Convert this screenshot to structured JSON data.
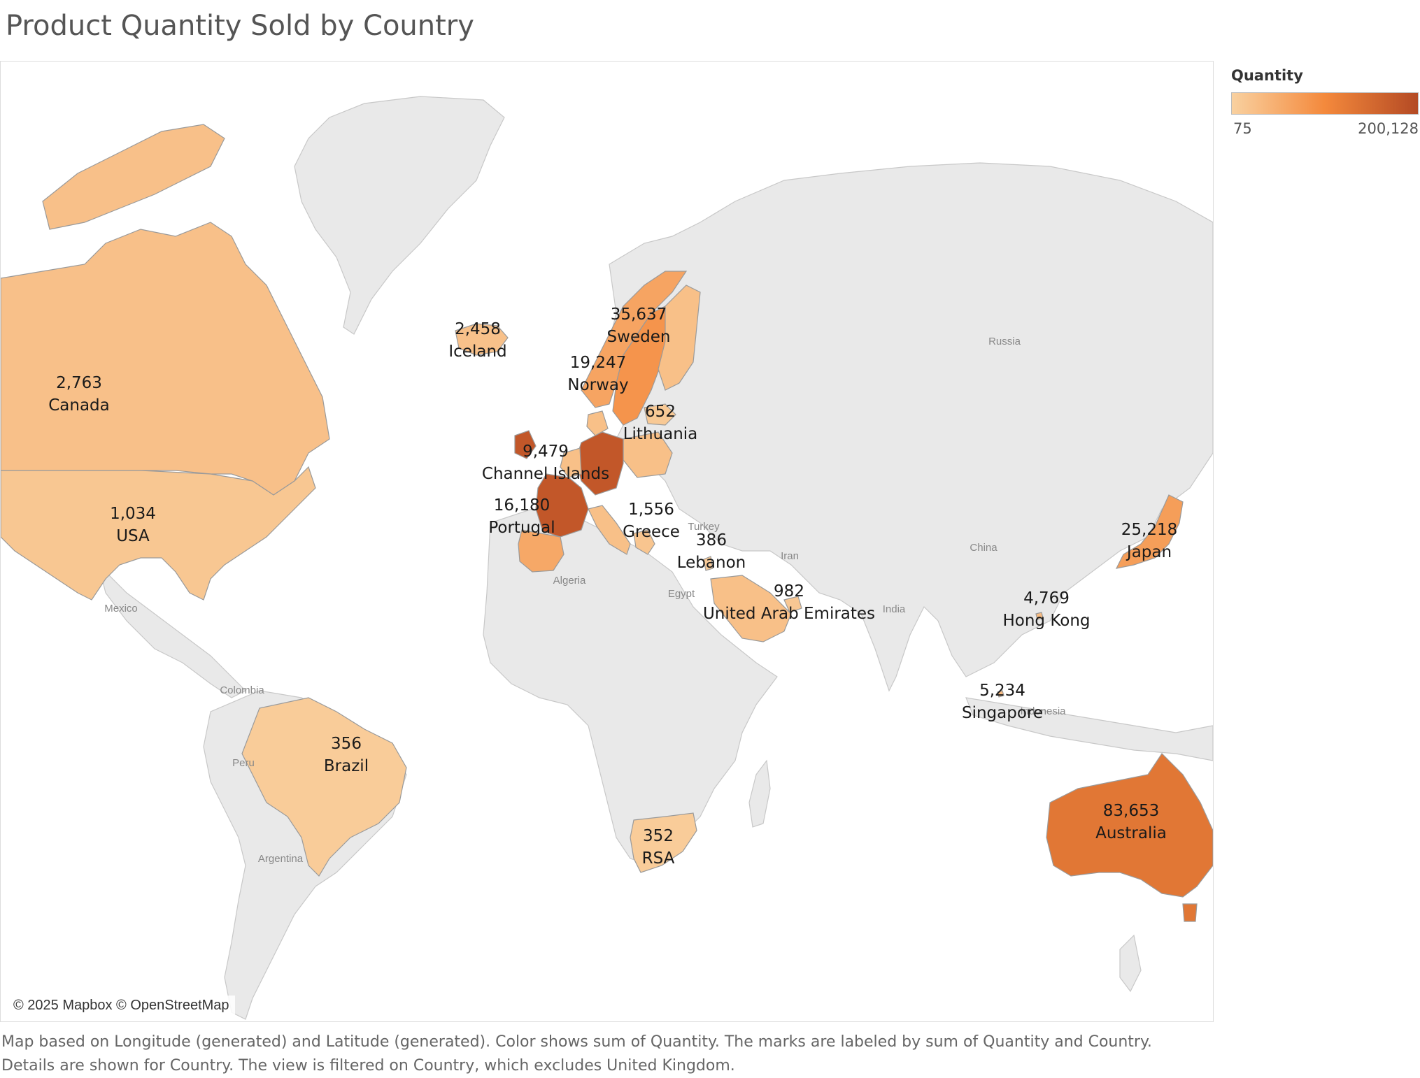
{
  "title": "Product Quantity Sold by Country",
  "attribution": "© 2025 Mapbox © OpenStreetMap",
  "legend": {
    "title": "Quantity",
    "min_label": "75",
    "max_label": "200,128",
    "min_value": 75,
    "max_value": 200128,
    "color_low": "#f9d1a0",
    "color_mid": "#f4893c",
    "color_high": "#b44a24"
  },
  "caption": {
    "line1": "Map based on Longitude (generated) and Latitude (generated).  Color shows sum of Quantity.  The marks are labeled by sum of Quantity and Country.",
    "line2": "Details are shown for Country. The view is filtered on Country, which excludes United Kingdom."
  },
  "colors": {
    "land": "#e9e9e9",
    "border": "#c8c8c8",
    "water": "#ffffff",
    "country_border": "#9a9a9a"
  },
  "basemap_labels": [
    "Russia",
    "China",
    "India",
    "Iran",
    "Turkey",
    "Egypt",
    "Algeria",
    "Mexico",
    "Colombia",
    "Peru",
    "Argentina",
    "Indonesia"
  ],
  "chart_data": {
    "type": "map",
    "measure": "Quantity",
    "countries": [
      {
        "name": "Canada",
        "value": 2763,
        "label": "2,763"
      },
      {
        "name": "USA",
        "value": 1034,
        "label": "1,034"
      },
      {
        "name": "Iceland",
        "value": 2458,
        "label": "2,458"
      },
      {
        "name": "Sweden",
        "value": 35637,
        "label": "35,637"
      },
      {
        "name": "Norway",
        "value": 19247,
        "label": "19,247"
      },
      {
        "name": "Lithuania",
        "value": 652,
        "label": "652"
      },
      {
        "name": "Channel Islands",
        "value": 9479,
        "label": "9,479"
      },
      {
        "name": "Portugal",
        "value": 16180,
        "label": "16,180"
      },
      {
        "name": "Greece",
        "value": 1556,
        "label": "1,556"
      },
      {
        "name": "Lebanon",
        "value": 386,
        "label": "386"
      },
      {
        "name": "United Arab Emirates",
        "value": 982,
        "label": "982"
      },
      {
        "name": "Japan",
        "value": 25218,
        "label": "25,218"
      },
      {
        "name": "Hong Kong",
        "value": 4769,
        "label": "4,769"
      },
      {
        "name": "Singapore",
        "value": 5234,
        "label": "5,234"
      },
      {
        "name": "Brazil",
        "value": 356,
        "label": "356"
      },
      {
        "name": "RSA",
        "value": 352,
        "label": "352"
      },
      {
        "name": "Australia",
        "value": 83653,
        "label": "83,653"
      }
    ],
    "unlabeled_colored_regions": [
      {
        "region": "Germany",
        "value_hint": "high"
      },
      {
        "region": "France",
        "value_hint": "high"
      },
      {
        "region": "Ireland",
        "value_hint": "high"
      },
      {
        "region": "Netherlands"
      },
      {
        "region": "Belgium"
      },
      {
        "region": "Switzerland"
      },
      {
        "region": "Finland"
      },
      {
        "region": "Denmark"
      },
      {
        "region": "Poland"
      },
      {
        "region": "Austria"
      },
      {
        "region": "Italy"
      },
      {
        "region": "Spain"
      },
      {
        "region": "Cyprus"
      },
      {
        "region": "Saudi Arabia"
      }
    ]
  }
}
